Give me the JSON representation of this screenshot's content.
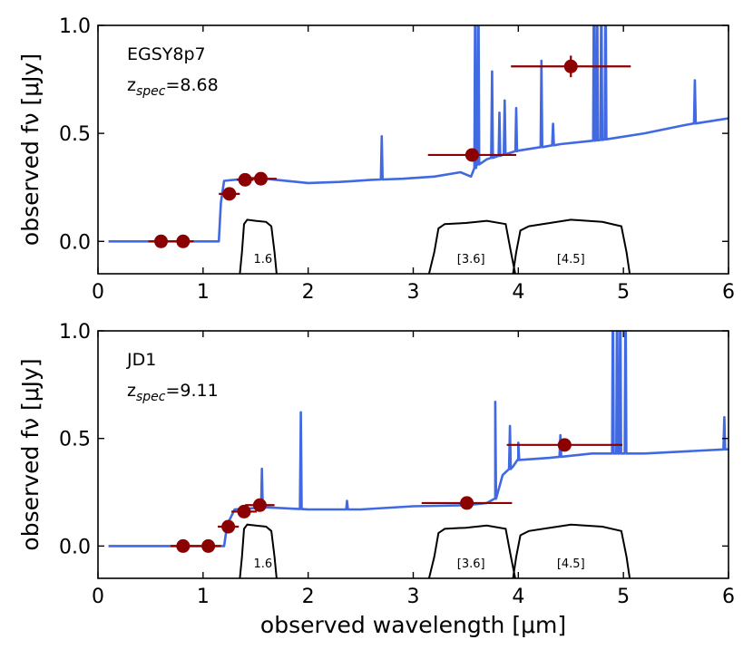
{
  "chart_data": [
    {
      "type": "line",
      "name": "EGSY8p7",
      "annotation": {
        "object": "EGSY8p7",
        "z_prefix": "z",
        "z_sub": "spec",
        "z_value": "=8.68"
      },
      "xlim": [
        0,
        6
      ],
      "ylim": [
        -0.15,
        1.0
      ],
      "xticks": [
        0,
        1,
        2,
        3,
        4,
        5,
        6
      ],
      "yticks": [
        0.0,
        0.5,
        1.0
      ],
      "xtick_labels": [
        "0",
        "1",
        "2",
        "3",
        "4",
        "5",
        "6"
      ],
      "ytick_labels": [
        "0.0",
        "0.5",
        "1.0"
      ],
      "xlabel": "",
      "ylabel": "observed fν [μJy]",
      "model_color": "#4169E1",
      "photometry_color": "#8B0000",
      "filter_color": "#000000",
      "model_continuum": [
        [
          0.1,
          0.0
        ],
        [
          1.15,
          0.0
        ],
        [
          1.17,
          0.18
        ],
        [
          1.2,
          0.28
        ],
        [
          1.5,
          0.295
        ],
        [
          1.7,
          0.285
        ],
        [
          2.0,
          0.27
        ],
        [
          2.3,
          0.275
        ],
        [
          2.6,
          0.285
        ],
        [
          2.9,
          0.29
        ],
        [
          3.2,
          0.3
        ],
        [
          3.45,
          0.32
        ],
        [
          3.55,
          0.3
        ],
        [
          3.6,
          0.35
        ],
        [
          3.7,
          0.38
        ],
        [
          4.0,
          0.42
        ],
        [
          4.4,
          0.45
        ],
        [
          4.8,
          0.47
        ],
        [
          5.2,
          0.5
        ],
        [
          5.6,
          0.54
        ],
        [
          6.0,
          0.57
        ]
      ],
      "model_lines": [
        {
          "x": 2.7,
          "h": 0.2
        },
        {
          "x": 3.59,
          "h": 0.9
        },
        {
          "x": 3.62,
          "h": 0.9
        },
        {
          "x": 3.75,
          "h": 0.4
        },
        {
          "x": 3.82,
          "h": 0.2
        },
        {
          "x": 3.87,
          "h": 0.25
        },
        {
          "x": 3.98,
          "h": 0.2
        },
        {
          "x": 4.22,
          "h": 0.4
        },
        {
          "x": 4.33,
          "h": 0.1
        },
        {
          "x": 4.72,
          "h": 0.8
        },
        {
          "x": 4.75,
          "h": 0.8
        },
        {
          "x": 4.79,
          "h": 0.8
        },
        {
          "x": 4.83,
          "h": 0.8
        },
        {
          "x": 5.68,
          "h": 0.2
        }
      ],
      "photometry": [
        {
          "x": 0.6,
          "y": 0.0,
          "xerr": 0.12,
          "yerr": 0.0
        },
        {
          "x": 0.81,
          "y": 0.0,
          "xerr": 0.1,
          "yerr": 0.0
        },
        {
          "x": 1.25,
          "y": 0.22,
          "xerr": 0.1,
          "yerr": 0.0
        },
        {
          "x": 1.4,
          "y": 0.285,
          "xerr": 0.08,
          "yerr": 0.0
        },
        {
          "x": 1.55,
          "y": 0.29,
          "xerr": 0.15,
          "yerr": 0.0
        },
        {
          "x": 3.56,
          "y": 0.4,
          "xerr": 0.42,
          "yerr": 0.02
        },
        {
          "x": 4.5,
          "y": 0.81,
          "xerr": 0.57,
          "yerr": 0.05
        }
      ],
      "filters": [
        {
          "label": "1.6",
          "label_x": 1.57,
          "curve": [
            [
              1.35,
              -0.15
            ],
            [
              1.37,
              -0.05
            ],
            [
              1.39,
              0.08
            ],
            [
              1.42,
              0.1
            ],
            [
              1.5,
              0.095
            ],
            [
              1.6,
              0.09
            ],
            [
              1.65,
              0.07
            ],
            [
              1.68,
              -0.05
            ],
            [
              1.7,
              -0.15
            ]
          ]
        },
        {
          "label": "[3.6]",
          "label_x": 3.55,
          "curve": [
            [
              3.15,
              -0.15
            ],
            [
              3.2,
              -0.05
            ],
            [
              3.24,
              0.06
            ],
            [
              3.3,
              0.08
            ],
            [
              3.5,
              0.085
            ],
            [
              3.7,
              0.095
            ],
            [
              3.88,
              0.08
            ],
            [
              3.93,
              -0.05
            ],
            [
              3.97,
              -0.15
            ]
          ]
        },
        {
          "label": "[4.5]",
          "label_x": 4.5,
          "curve": [
            [
              3.95,
              -0.15
            ],
            [
              3.98,
              -0.05
            ],
            [
              4.02,
              0.05
            ],
            [
              4.1,
              0.07
            ],
            [
              4.3,
              0.085
            ],
            [
              4.5,
              0.1
            ],
            [
              4.8,
              0.09
            ],
            [
              4.98,
              0.07
            ],
            [
              5.03,
              -0.05
            ],
            [
              5.06,
              -0.15
            ]
          ]
        }
      ]
    },
    {
      "type": "line",
      "name": "JD1",
      "annotation": {
        "object": "JD1",
        "z_prefix": "z",
        "z_sub": "spec",
        "z_value": "=9.11"
      },
      "xlim": [
        0,
        6
      ],
      "ylim": [
        -0.15,
        1.0
      ],
      "xticks": [
        0,
        1,
        2,
        3,
        4,
        5,
        6
      ],
      "yticks": [
        0.0,
        0.5,
        1.0
      ],
      "xtick_labels": [
        "0",
        "1",
        "2",
        "3",
        "4",
        "5",
        "6"
      ],
      "ytick_labels": [
        "0.0",
        "0.5",
        "1.0"
      ],
      "xlabel": "observed wavelength [μm]",
      "ylabel": "observed fν [μJy]",
      "model_color": "#4169E1",
      "photometry_color": "#8B0000",
      "filter_color": "#000000",
      "model_continuum": [
        [
          0.1,
          0.0
        ],
        [
          1.2,
          0.0
        ],
        [
          1.23,
          0.1
        ],
        [
          1.3,
          0.17
        ],
        [
          1.6,
          0.18
        ],
        [
          2.0,
          0.17
        ],
        [
          2.5,
          0.17
        ],
        [
          3.0,
          0.185
        ],
        [
          3.5,
          0.19
        ],
        [
          3.7,
          0.2
        ],
        [
          3.78,
          0.22
        ],
        [
          3.85,
          0.33
        ],
        [
          3.95,
          0.37
        ],
        [
          4.0,
          0.4
        ],
        [
          4.3,
          0.41
        ],
        [
          4.7,
          0.43
        ],
        [
          5.2,
          0.43
        ],
        [
          5.6,
          0.44
        ],
        [
          6.0,
          0.45
        ]
      ],
      "model_lines": [
        {
          "x": 1.56,
          "h": 0.18
        },
        {
          "x": 1.93,
          "h": 0.45
        },
        {
          "x": 2.37,
          "h": 0.04
        },
        {
          "x": 3.78,
          "h": 0.45
        },
        {
          "x": 3.92,
          "h": 0.2
        },
        {
          "x": 4.0,
          "h": 0.08
        },
        {
          "x": 4.4,
          "h": 0.1
        },
        {
          "x": 4.9,
          "h": 0.8
        },
        {
          "x": 4.94,
          "h": 0.8
        },
        {
          "x": 4.97,
          "h": 0.8
        },
        {
          "x": 5.02,
          "h": 0.8
        },
        {
          "x": 5.96,
          "h": 0.15
        }
      ],
      "photometry": [
        {
          "x": 0.81,
          "y": 0.0,
          "xerr": 0.12,
          "yerr": 0.0
        },
        {
          "x": 1.05,
          "y": 0.0,
          "xerr": 0.12,
          "yerr": 0.0
        },
        {
          "x": 1.24,
          "y": 0.09,
          "xerr": 0.1,
          "yerr": 0.0
        },
        {
          "x": 1.39,
          "y": 0.16,
          "xerr": 0.12,
          "yerr": 0.0
        },
        {
          "x": 1.54,
          "y": 0.19,
          "xerr": 0.14,
          "yerr": 0.0
        },
        {
          "x": 3.51,
          "y": 0.2,
          "xerr": 0.43,
          "yerr": 0.0
        },
        {
          "x": 4.44,
          "y": 0.47,
          "xerr": 0.55,
          "yerr": 0.0
        }
      ],
      "filters": [
        {
          "label": "1.6",
          "label_x": 1.57,
          "curve": [
            [
              1.35,
              -0.15
            ],
            [
              1.37,
              -0.05
            ],
            [
              1.39,
              0.08
            ],
            [
              1.42,
              0.1
            ],
            [
              1.5,
              0.095
            ],
            [
              1.6,
              0.09
            ],
            [
              1.65,
              0.07
            ],
            [
              1.68,
              -0.05
            ],
            [
              1.7,
              -0.15
            ]
          ]
        },
        {
          "label": "[3.6]",
          "label_x": 3.55,
          "curve": [
            [
              3.15,
              -0.15
            ],
            [
              3.2,
              -0.05
            ],
            [
              3.24,
              0.06
            ],
            [
              3.3,
              0.08
            ],
            [
              3.5,
              0.085
            ],
            [
              3.7,
              0.095
            ],
            [
              3.88,
              0.08
            ],
            [
              3.93,
              -0.05
            ],
            [
              3.97,
              -0.15
            ]
          ]
        },
        {
          "label": "[4.5]",
          "label_x": 4.5,
          "curve": [
            [
              3.95,
              -0.15
            ],
            [
              3.98,
              -0.05
            ],
            [
              4.02,
              0.05
            ],
            [
              4.1,
              0.07
            ],
            [
              4.3,
              0.085
            ],
            [
              4.5,
              0.1
            ],
            [
              4.8,
              0.09
            ],
            [
              4.98,
              0.07
            ],
            [
              5.03,
              -0.05
            ],
            [
              5.06,
              -0.15
            ]
          ]
        }
      ]
    }
  ]
}
